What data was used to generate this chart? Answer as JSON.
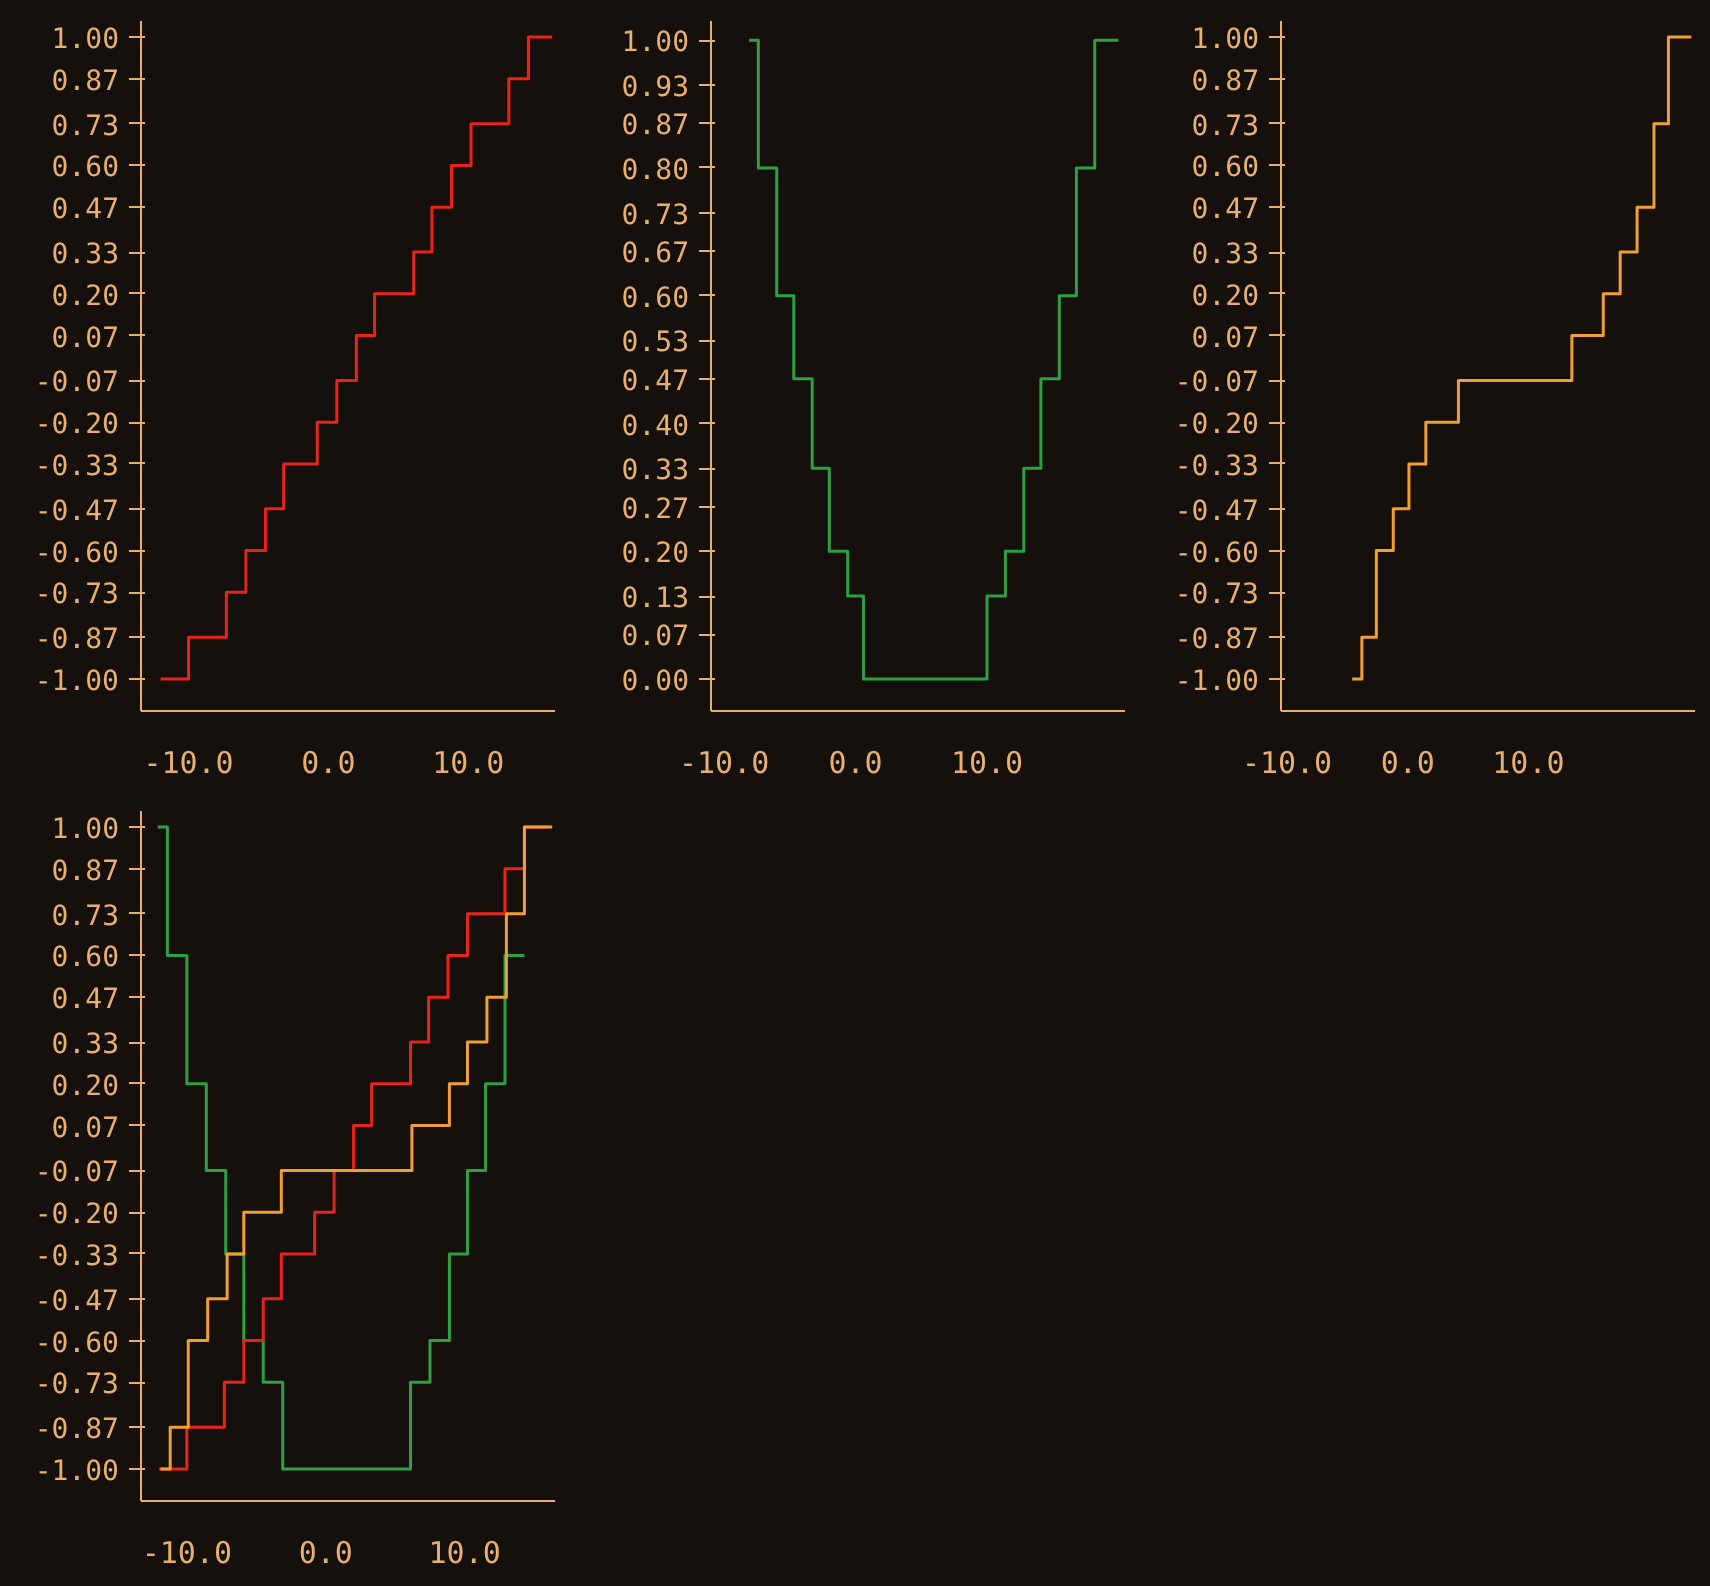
{
  "chart_data": [
    {
      "type": "step",
      "xlim": [
        -13.4,
        16.2
      ],
      "ylim": [
        -1.1,
        1.05
      ],
      "xticks": [
        {
          "value": -10,
          "label": "-10.0"
        },
        {
          "value": 0,
          "label": "0.0"
        },
        {
          "value": 10,
          "label": "10.0"
        }
      ],
      "yticks": [
        {
          "value": 1,
          "label": "1.00"
        },
        {
          "value": 0.87,
          "label": "0.87"
        },
        {
          "value": 0.73,
          "label": "0.73"
        },
        {
          "value": 0.6,
          "label": "0.60"
        },
        {
          "value": 0.47,
          "label": "0.47"
        },
        {
          "value": 0.33,
          "label": "0.33"
        },
        {
          "value": 0.2,
          "label": "0.20"
        },
        {
          "value": 0.07,
          "label": "0.07"
        },
        {
          "value": -0.07,
          "label": "-0.07"
        },
        {
          "value": -0.2,
          "label": "-0.20"
        },
        {
          "value": -0.33,
          "label": "-0.33"
        },
        {
          "value": -0.47,
          "label": "-0.47"
        },
        {
          "value": -0.6,
          "label": "-0.60"
        },
        {
          "value": -0.73,
          "label": "-0.73"
        },
        {
          "value": -0.87,
          "label": "-0.87"
        },
        {
          "value": -1,
          "label": "-1.00"
        }
      ],
      "grid": false,
      "series": [
        {
          "color": "#e8231c",
          "x": [
            -12.0,
            -10.0,
            -7.3,
            -5.9,
            -4.5,
            -3.2,
            -0.8,
            0.6,
            2.0,
            3.3,
            6.1,
            7.4,
            8.8,
            10.2,
            12.9,
            14.3,
            16.0
          ],
          "values": [
            -1,
            -0.87,
            -0.73,
            -0.6,
            -0.47,
            -0.33,
            -0.2,
            -0.07,
            0.07,
            0.2,
            0.33,
            0.47,
            0.6,
            0.73,
            0.87,
            1,
            1
          ]
        }
      ]
    },
    {
      "type": "step",
      "xlim": [
        -11,
        20.5
      ],
      "ylim": [
        -0.05,
        1.03
      ],
      "xticks": [
        {
          "value": -10,
          "label": "-10.0"
        },
        {
          "value": 0,
          "label": "0.0"
        },
        {
          "value": 10,
          "label": "10.0"
        }
      ],
      "yticks": [
        {
          "value": 1,
          "label": "1.00"
        },
        {
          "value": 0.93,
          "label": "0.93"
        },
        {
          "value": 0.87,
          "label": "0.87"
        },
        {
          "value": 0.8,
          "label": "0.80"
        },
        {
          "value": 0.73,
          "label": "0.73"
        },
        {
          "value": 0.67,
          "label": "0.67"
        },
        {
          "value": 0.6,
          "label": "0.60"
        },
        {
          "value": 0.53,
          "label": "0.53"
        },
        {
          "value": 0.47,
          "label": "0.47"
        },
        {
          "value": 0.4,
          "label": "0.40"
        },
        {
          "value": 0.33,
          "label": "0.33"
        },
        {
          "value": 0.27,
          "label": "0.27"
        },
        {
          "value": 0.2,
          "label": "0.20"
        },
        {
          "value": 0.13,
          "label": "0.13"
        },
        {
          "value": 0.07,
          "label": "0.07"
        },
        {
          "value": 0,
          "label": "0.00"
        }
      ],
      "grid": false,
      "series": [
        {
          "color": "#2ea043",
          "x": [
            -8.1,
            -7.4,
            -6.0,
            -4.7,
            -3.3,
            -2.0,
            -0.6,
            0.6,
            10.0,
            11.4,
            12.8,
            14.1,
            15.5,
            16.8,
            18.2,
            20.0
          ],
          "values": [
            1,
            0.8,
            0.6,
            0.47,
            0.33,
            0.2,
            0.13,
            0,
            0.13,
            0.2,
            0.33,
            0.47,
            0.6,
            0.8,
            1,
            1
          ]
        }
      ]
    },
    {
      "type": "step",
      "xlim": [
        -10.5,
        23.8
      ],
      "ylim": [
        -1.1,
        1.05
      ],
      "xticks": [
        {
          "value": -10,
          "label": "-10.0"
        },
        {
          "value": 0,
          "label": "0.0"
        },
        {
          "value": 10,
          "label": "10.0"
        }
      ],
      "yticks": [
        {
          "value": 1,
          "label": "1.00"
        },
        {
          "value": 0.87,
          "label": "0.87"
        },
        {
          "value": 0.73,
          "label": "0.73"
        },
        {
          "value": 0.6,
          "label": "0.60"
        },
        {
          "value": 0.47,
          "label": "0.47"
        },
        {
          "value": 0.33,
          "label": "0.33"
        },
        {
          "value": 0.2,
          "label": "0.20"
        },
        {
          "value": 0.07,
          "label": "0.07"
        },
        {
          "value": -0.07,
          "label": "-0.07"
        },
        {
          "value": -0.2,
          "label": "-0.20"
        },
        {
          "value": -0.33,
          "label": "-0.33"
        },
        {
          "value": -0.47,
          "label": "-0.47"
        },
        {
          "value": -0.6,
          "label": "-0.60"
        },
        {
          "value": -0.73,
          "label": "-0.73"
        },
        {
          "value": -0.87,
          "label": "-0.87"
        },
        {
          "value": -1,
          "label": "-1.00"
        }
      ],
      "grid": false,
      "series": [
        {
          "color": "#f0a030",
          "x": [
            -4.6,
            -3.8,
            -2.6,
            -1.2,
            0.1,
            1.5,
            4.2,
            13.6,
            16.2,
            17.6,
            19.0,
            20.4,
            21.6,
            23.5
          ],
          "values": [
            -1,
            -0.87,
            -0.6,
            -0.47,
            -0.33,
            -0.2,
            -0.07,
            0.07,
            0.2,
            0.33,
            0.47,
            0.73,
            1,
            1
          ]
        }
      ]
    },
    {
      "type": "step",
      "xlim": [
        -13.3,
        16.5
      ],
      "ylim": [
        -1.1,
        1.05
      ],
      "xticks": [
        {
          "value": -10,
          "label": "-10.0"
        },
        {
          "value": 0,
          "label": "0.0"
        },
        {
          "value": 10,
          "label": "10.0"
        }
      ],
      "yticks": [
        {
          "value": 1,
          "label": "1.00"
        },
        {
          "value": 0.87,
          "label": "0.87"
        },
        {
          "value": 0.73,
          "label": "0.73"
        },
        {
          "value": 0.6,
          "label": "0.60"
        },
        {
          "value": 0.47,
          "label": "0.47"
        },
        {
          "value": 0.33,
          "label": "0.33"
        },
        {
          "value": 0.2,
          "label": "0.20"
        },
        {
          "value": 0.07,
          "label": "0.07"
        },
        {
          "value": -0.07,
          "label": "-0.07"
        },
        {
          "value": -0.2,
          "label": "-0.20"
        },
        {
          "value": -0.33,
          "label": "-0.33"
        },
        {
          "value": -0.47,
          "label": "-0.47"
        },
        {
          "value": -0.6,
          "label": "-0.60"
        },
        {
          "value": -0.73,
          "label": "-0.73"
        },
        {
          "value": -0.87,
          "label": "-0.87"
        },
        {
          "value": -1,
          "label": "-1.00"
        }
      ],
      "grid": false,
      "series": [
        {
          "color": "#2ea043",
          "x": [
            -12.1,
            -11.4,
            -10.0,
            -8.6,
            -7.2,
            -5.9,
            -4.5,
            -3.1,
            6.1,
            7.5,
            8.9,
            10.2,
            11.5,
            12.9,
            14.3
          ],
          "values": [
            1,
            0.6,
            0.2,
            -0.07,
            -0.33,
            -0.6,
            -0.73,
            -1,
            -0.73,
            -0.6,
            -0.33,
            -0.07,
            0.2,
            0.6,
            0.6
          ]
        },
        {
          "color": "#e8231c",
          "x": [
            -12.0,
            -10.0,
            -7.3,
            -5.9,
            -4.5,
            -3.2,
            -0.8,
            0.6,
            2.0,
            3.3,
            6.1,
            7.4,
            8.8,
            10.2,
            12.9,
            14.3,
            16.0
          ],
          "values": [
            -1,
            -0.87,
            -0.73,
            -0.6,
            -0.47,
            -0.33,
            -0.2,
            -0.07,
            0.07,
            0.2,
            0.33,
            0.47,
            0.6,
            0.73,
            0.87,
            1,
            1
          ]
        },
        {
          "color": "#f0a030",
          "x": [
            -11.9,
            -11.2,
            -9.9,
            -8.5,
            -7.1,
            -5.9,
            -3.2,
            6.2,
            8.9,
            10.2,
            11.6,
            13.0,
            14.3,
            16.3
          ],
          "values": [
            -1,
            -0.87,
            -0.6,
            -0.47,
            -0.33,
            -0.2,
            -0.07,
            0.07,
            0.2,
            0.33,
            0.47,
            0.73,
            1,
            1
          ]
        }
      ]
    }
  ]
}
